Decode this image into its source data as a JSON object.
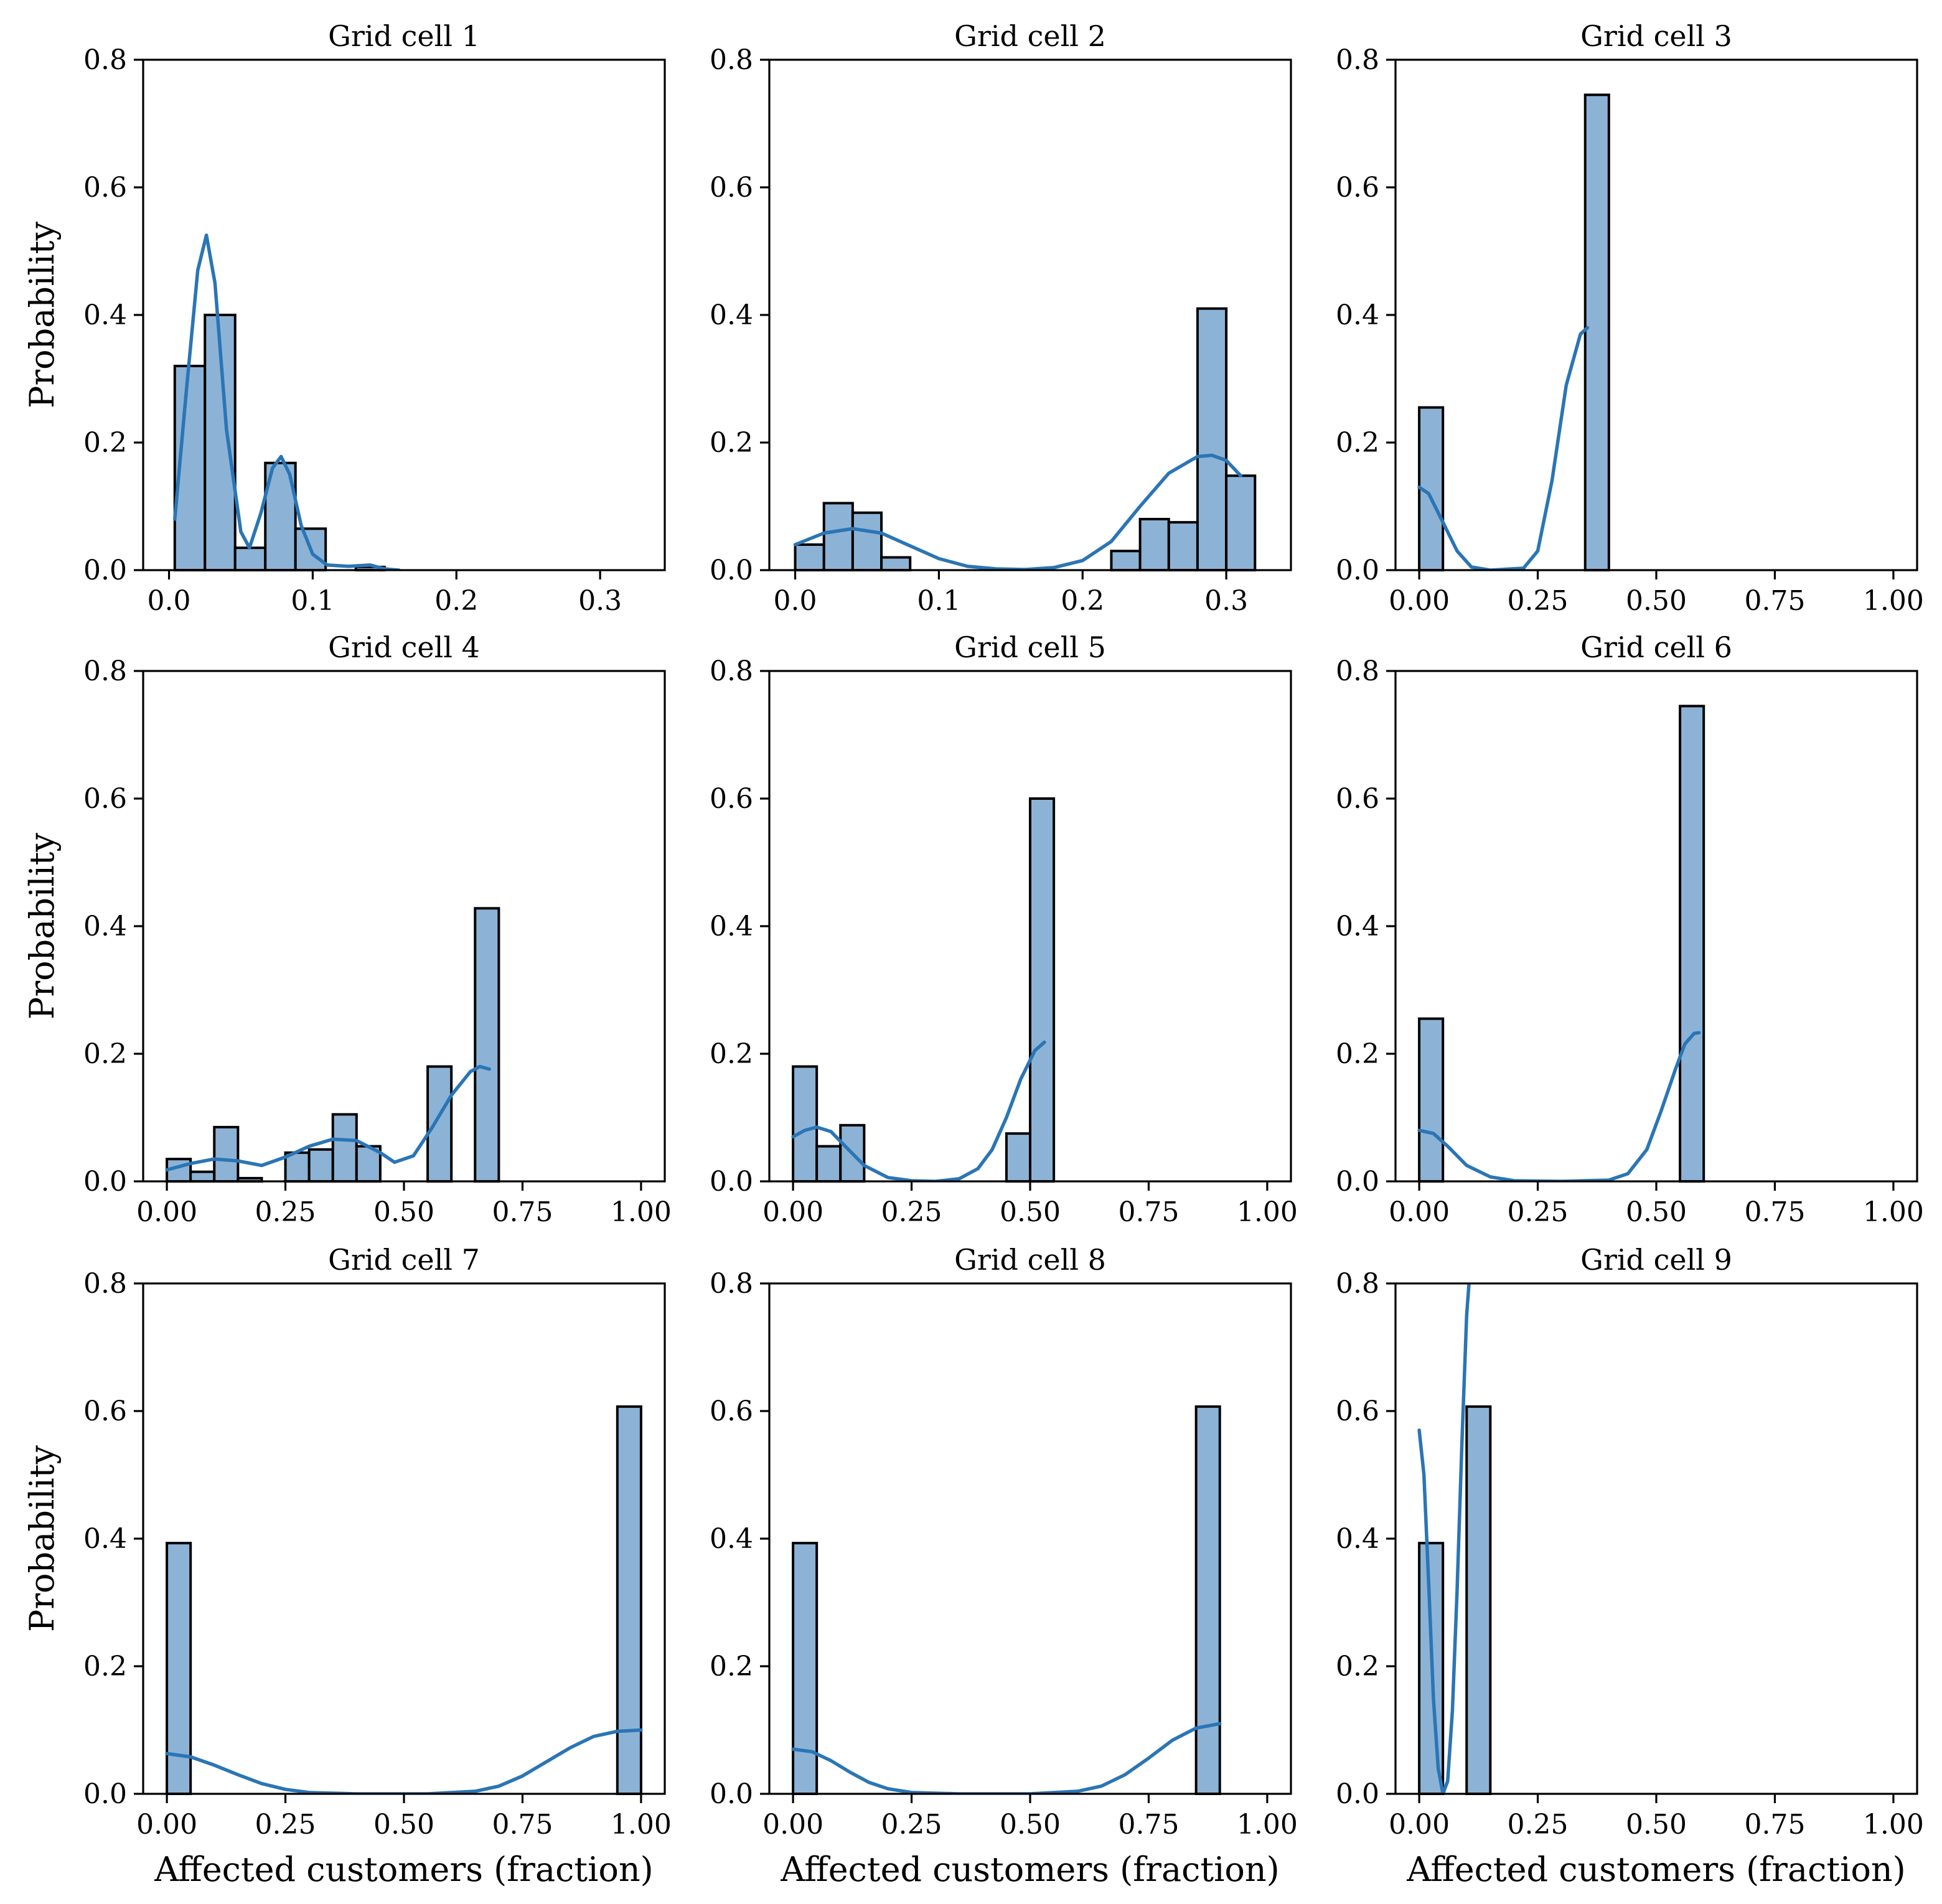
{
  "chart_data": [
    {
      "type": "bar",
      "title": "Grid cell 1",
      "xlabel": "",
      "ylabel": "Probability",
      "xlim": [
        -0.018,
        0.345
      ],
      "ylim": [
        0,
        0.8
      ],
      "xticks": [
        0.0,
        0.1,
        0.2,
        0.3
      ],
      "xtick_labels": [
        "0.0",
        "0.1",
        "0.2",
        "0.3"
      ],
      "yticks": [
        0.0,
        0.2,
        0.4,
        0.6,
        0.8
      ],
      "ytick_labels": [
        "0.0",
        "0.2",
        "0.4",
        "0.6",
        "0.8"
      ],
      "bins": [
        [
          0.004,
          0.025,
          0.32
        ],
        [
          0.025,
          0.046,
          0.4
        ],
        [
          0.046,
          0.067,
          0.035
        ],
        [
          0.067,
          0.088,
          0.168
        ],
        [
          0.088,
          0.109,
          0.065
        ],
        [
          0.109,
          0.13,
          0.0
        ],
        [
          0.13,
          0.15,
          0.005
        ]
      ],
      "kde": [
        [
          0.004,
          0.08
        ],
        [
          0.012,
          0.28
        ],
        [
          0.02,
          0.47
        ],
        [
          0.026,
          0.525
        ],
        [
          0.032,
          0.45
        ],
        [
          0.04,
          0.22
        ],
        [
          0.05,
          0.06
        ],
        [
          0.056,
          0.035
        ],
        [
          0.064,
          0.09
        ],
        [
          0.072,
          0.16
        ],
        [
          0.078,
          0.178
        ],
        [
          0.084,
          0.15
        ],
        [
          0.092,
          0.07
        ],
        [
          0.1,
          0.025
        ],
        [
          0.11,
          0.008
        ],
        [
          0.125,
          0.006
        ],
        [
          0.14,
          0.008
        ],
        [
          0.15,
          0.002
        ],
        [
          0.16,
          0.0
        ]
      ]
    },
    {
      "type": "bar",
      "title": "Grid cell 2",
      "xlabel": "",
      "ylabel": "",
      "xlim": [
        -0.018,
        0.345
      ],
      "ylim": [
        0,
        0.8
      ],
      "xticks": [
        0.0,
        0.1,
        0.2,
        0.3
      ],
      "xtick_labels": [
        "0.0",
        "0.1",
        "0.2",
        "0.3"
      ],
      "yticks": [
        0.0,
        0.2,
        0.4,
        0.6,
        0.8
      ],
      "ytick_labels": [
        "0.0",
        "0.2",
        "0.4",
        "0.6",
        "0.8"
      ],
      "bins": [
        [
          0.0,
          0.02,
          0.04
        ],
        [
          0.02,
          0.04,
          0.105
        ],
        [
          0.04,
          0.06,
          0.09
        ],
        [
          0.06,
          0.08,
          0.02
        ],
        [
          0.22,
          0.24,
          0.03
        ],
        [
          0.24,
          0.26,
          0.08
        ],
        [
          0.26,
          0.28,
          0.075
        ],
        [
          0.28,
          0.3,
          0.41
        ],
        [
          0.3,
          0.32,
          0.148
        ]
      ],
      "kde": [
        [
          0.0,
          0.04
        ],
        [
          0.02,
          0.058
        ],
        [
          0.04,
          0.065
        ],
        [
          0.06,
          0.058
        ],
        [
          0.08,
          0.038
        ],
        [
          0.1,
          0.018
        ],
        [
          0.12,
          0.006
        ],
        [
          0.14,
          0.002
        ],
        [
          0.16,
          0.001
        ],
        [
          0.18,
          0.004
        ],
        [
          0.2,
          0.015
        ],
        [
          0.22,
          0.045
        ],
        [
          0.24,
          0.1
        ],
        [
          0.26,
          0.152
        ],
        [
          0.28,
          0.178
        ],
        [
          0.29,
          0.18
        ],
        [
          0.3,
          0.172
        ],
        [
          0.31,
          0.148
        ]
      ]
    },
    {
      "type": "bar",
      "title": "Grid cell 3",
      "xlabel": "",
      "ylabel": "",
      "xlim": [
        -0.05,
        1.05
      ],
      "ylim": [
        0,
        0.8
      ],
      "xticks": [
        0.0,
        0.25,
        0.5,
        0.75,
        1.0
      ],
      "xtick_labels": [
        "0.00",
        "0.25",
        "0.50",
        "0.75",
        "1.00"
      ],
      "yticks": [
        0.0,
        0.2,
        0.4,
        0.6,
        0.8
      ],
      "ytick_labels": [
        "0.0",
        "0.2",
        "0.4",
        "0.6",
        "0.8"
      ],
      "bins": [
        [
          0.0,
          0.05,
          0.255
        ],
        [
          0.35,
          0.4,
          0.745
        ]
      ],
      "kde": [
        [
          0.0,
          0.13
        ],
        [
          0.02,
          0.12
        ],
        [
          0.05,
          0.075
        ],
        [
          0.08,
          0.03
        ],
        [
          0.11,
          0.005
        ],
        [
          0.15,
          0.0
        ],
        [
          0.22,
          0.003
        ],
        [
          0.25,
          0.03
        ],
        [
          0.28,
          0.14
        ],
        [
          0.31,
          0.29
        ],
        [
          0.34,
          0.37
        ],
        [
          0.355,
          0.38
        ]
      ]
    },
    {
      "type": "bar",
      "title": "Grid cell 4",
      "xlabel": "",
      "ylabel": "Probability",
      "xlim": [
        -0.05,
        1.05
      ],
      "ylim": [
        0,
        0.8
      ],
      "xticks": [
        0.0,
        0.25,
        0.5,
        0.75,
        1.0
      ],
      "xtick_labels": [
        "0.00",
        "0.25",
        "0.50",
        "0.75",
        "1.00"
      ],
      "yticks": [
        0.0,
        0.2,
        0.4,
        0.6,
        0.8
      ],
      "ytick_labels": [
        "0.0",
        "0.2",
        "0.4",
        "0.6",
        "0.8"
      ],
      "bins": [
        [
          0.0,
          0.05,
          0.035
        ],
        [
          0.05,
          0.1,
          0.015
        ],
        [
          0.1,
          0.15,
          0.085
        ],
        [
          0.15,
          0.2,
          0.005
        ],
        [
          0.25,
          0.3,
          0.045
        ],
        [
          0.3,
          0.35,
          0.05
        ],
        [
          0.35,
          0.4,
          0.105
        ],
        [
          0.4,
          0.45,
          0.055
        ],
        [
          0.55,
          0.6,
          0.18
        ],
        [
          0.65,
          0.7,
          0.428
        ]
      ],
      "kde": [
        [
          0.0,
          0.018
        ],
        [
          0.05,
          0.028
        ],
        [
          0.1,
          0.035
        ],
        [
          0.15,
          0.032
        ],
        [
          0.2,
          0.025
        ],
        [
          0.25,
          0.038
        ],
        [
          0.3,
          0.055
        ],
        [
          0.35,
          0.066
        ],
        [
          0.4,
          0.064
        ],
        [
          0.45,
          0.045
        ],
        [
          0.48,
          0.03
        ],
        [
          0.52,
          0.04
        ],
        [
          0.56,
          0.085
        ],
        [
          0.6,
          0.135
        ],
        [
          0.64,
          0.172
        ],
        [
          0.66,
          0.18
        ],
        [
          0.68,
          0.176
        ]
      ]
    },
    {
      "type": "bar",
      "title": "Grid cell 5",
      "xlabel": "",
      "ylabel": "",
      "xlim": [
        -0.05,
        1.05
      ],
      "ylim": [
        0,
        0.8
      ],
      "xticks": [
        0.0,
        0.25,
        0.5,
        0.75,
        1.0
      ],
      "xtick_labels": [
        "0.00",
        "0.25",
        "0.50",
        "0.75",
        "1.00"
      ],
      "yticks": [
        0.0,
        0.2,
        0.4,
        0.6,
        0.8
      ],
      "ytick_labels": [
        "0.0",
        "0.2",
        "0.4",
        "0.6",
        "0.8"
      ],
      "bins": [
        [
          0.0,
          0.05,
          0.18
        ],
        [
          0.05,
          0.1,
          0.055
        ],
        [
          0.1,
          0.15,
          0.088
        ],
        [
          0.45,
          0.5,
          0.075
        ],
        [
          0.5,
          0.55,
          0.6
        ]
      ],
      "kde": [
        [
          0.0,
          0.07
        ],
        [
          0.025,
          0.08
        ],
        [
          0.05,
          0.085
        ],
        [
          0.08,
          0.078
        ],
        [
          0.11,
          0.055
        ],
        [
          0.15,
          0.025
        ],
        [
          0.2,
          0.006
        ],
        [
          0.25,
          0.001
        ],
        [
          0.3,
          0.0
        ],
        [
          0.35,
          0.004
        ],
        [
          0.39,
          0.02
        ],
        [
          0.42,
          0.05
        ],
        [
          0.45,
          0.1
        ],
        [
          0.48,
          0.16
        ],
        [
          0.51,
          0.205
        ],
        [
          0.53,
          0.218
        ]
      ]
    },
    {
      "type": "bar",
      "title": "Grid cell 6",
      "xlabel": "",
      "ylabel": "",
      "xlim": [
        -0.05,
        1.05
      ],
      "ylim": [
        0,
        0.8
      ],
      "xticks": [
        0.0,
        0.25,
        0.5,
        0.75,
        1.0
      ],
      "xtick_labels": [
        "0.00",
        "0.25",
        "0.50",
        "0.75",
        "1.00"
      ],
      "yticks": [
        0.0,
        0.2,
        0.4,
        0.6,
        0.8
      ],
      "ytick_labels": [
        "0.0",
        "0.2",
        "0.4",
        "0.6",
        "0.8"
      ],
      "bins": [
        [
          0.0,
          0.05,
          0.255
        ],
        [
          0.55,
          0.6,
          0.745
        ]
      ],
      "kde": [
        [
          0.0,
          0.08
        ],
        [
          0.03,
          0.075
        ],
        [
          0.06,
          0.055
        ],
        [
          0.1,
          0.025
        ],
        [
          0.15,
          0.007
        ],
        [
          0.2,
          0.001
        ],
        [
          0.3,
          0.0
        ],
        [
          0.4,
          0.002
        ],
        [
          0.44,
          0.012
        ],
        [
          0.48,
          0.05
        ],
        [
          0.51,
          0.11
        ],
        [
          0.54,
          0.175
        ],
        [
          0.56,
          0.215
        ],
        [
          0.58,
          0.232
        ],
        [
          0.59,
          0.233
        ]
      ]
    },
    {
      "type": "bar",
      "title": "Grid cell 7",
      "xlabel": "Affected customers (fraction)",
      "ylabel": "Probability",
      "xlim": [
        -0.05,
        1.05
      ],
      "ylim": [
        0,
        0.8
      ],
      "xticks": [
        0.0,
        0.25,
        0.5,
        0.75,
        1.0
      ],
      "xtick_labels": [
        "0.00",
        "0.25",
        "0.50",
        "0.75",
        "1.00"
      ],
      "yticks": [
        0.0,
        0.2,
        0.4,
        0.6,
        0.8
      ],
      "ytick_labels": [
        "0.0",
        "0.2",
        "0.4",
        "0.6",
        "0.8"
      ],
      "bins": [
        [
          0.0,
          0.05,
          0.393
        ],
        [
          0.95,
          1.0,
          0.607
        ]
      ],
      "kde": [
        [
          0.0,
          0.063
        ],
        [
          0.05,
          0.058
        ],
        [
          0.1,
          0.045
        ],
        [
          0.15,
          0.03
        ],
        [
          0.2,
          0.016
        ],
        [
          0.25,
          0.007
        ],
        [
          0.3,
          0.002
        ],
        [
          0.4,
          0.0
        ],
        [
          0.55,
          0.0
        ],
        [
          0.65,
          0.004
        ],
        [
          0.7,
          0.012
        ],
        [
          0.75,
          0.028
        ],
        [
          0.8,
          0.05
        ],
        [
          0.85,
          0.072
        ],
        [
          0.9,
          0.09
        ],
        [
          0.95,
          0.098
        ],
        [
          1.0,
          0.1
        ]
      ]
    },
    {
      "type": "bar",
      "title": "Grid cell 8",
      "xlabel": "Affected customers (fraction)",
      "ylabel": "",
      "xlim": [
        -0.05,
        1.05
      ],
      "ylim": [
        0,
        0.8
      ],
      "xticks": [
        0.0,
        0.25,
        0.5,
        0.75,
        1.0
      ],
      "xtick_labels": [
        "0.00",
        "0.25",
        "0.50",
        "0.75",
        "1.00"
      ],
      "yticks": [
        0.0,
        0.2,
        0.4,
        0.6,
        0.8
      ],
      "ytick_labels": [
        "0.0",
        "0.2",
        "0.4",
        "0.6",
        "0.8"
      ],
      "bins": [
        [
          0.0,
          0.05,
          0.393
        ],
        [
          0.85,
          0.9,
          0.607
        ]
      ],
      "kde": [
        [
          0.0,
          0.07
        ],
        [
          0.04,
          0.066
        ],
        [
          0.08,
          0.052
        ],
        [
          0.12,
          0.034
        ],
        [
          0.16,
          0.018
        ],
        [
          0.2,
          0.008
        ],
        [
          0.25,
          0.002
        ],
        [
          0.35,
          0.0
        ],
        [
          0.5,
          0.0
        ],
        [
          0.6,
          0.004
        ],
        [
          0.65,
          0.012
        ],
        [
          0.7,
          0.03
        ],
        [
          0.75,
          0.056
        ],
        [
          0.8,
          0.084
        ],
        [
          0.85,
          0.103
        ],
        [
          0.9,
          0.11
        ]
      ]
    },
    {
      "type": "bar",
      "title": "Grid cell 9",
      "xlabel": "Affected customers (fraction)",
      "ylabel": "",
      "xlim": [
        -0.05,
        1.05
      ],
      "ylim": [
        0,
        0.8
      ],
      "xticks": [
        0.0,
        0.25,
        0.5,
        0.75,
        1.0
      ],
      "xtick_labels": [
        "0.00",
        "0.25",
        "0.50",
        "0.75",
        "1.00"
      ],
      "yticks": [
        0.0,
        0.2,
        0.4,
        0.6,
        0.8
      ],
      "ytick_labels": [
        "0.0",
        "0.2",
        "0.4",
        "0.6",
        "0.8"
      ],
      "bins": [
        [
          0.0,
          0.05,
          0.393
        ],
        [
          0.1,
          0.15,
          0.607
        ]
      ],
      "kde": [
        [
          0.0,
          0.57
        ],
        [
          0.01,
          0.5
        ],
        [
          0.02,
          0.33
        ],
        [
          0.03,
          0.15
        ],
        [
          0.04,
          0.04
        ],
        [
          0.05,
          0.0
        ],
        [
          0.06,
          0.02
        ],
        [
          0.07,
          0.13
        ],
        [
          0.08,
          0.32
        ],
        [
          0.09,
          0.55
        ],
        [
          0.1,
          0.75
        ],
        [
          0.105,
          0.8
        ]
      ]
    }
  ]
}
